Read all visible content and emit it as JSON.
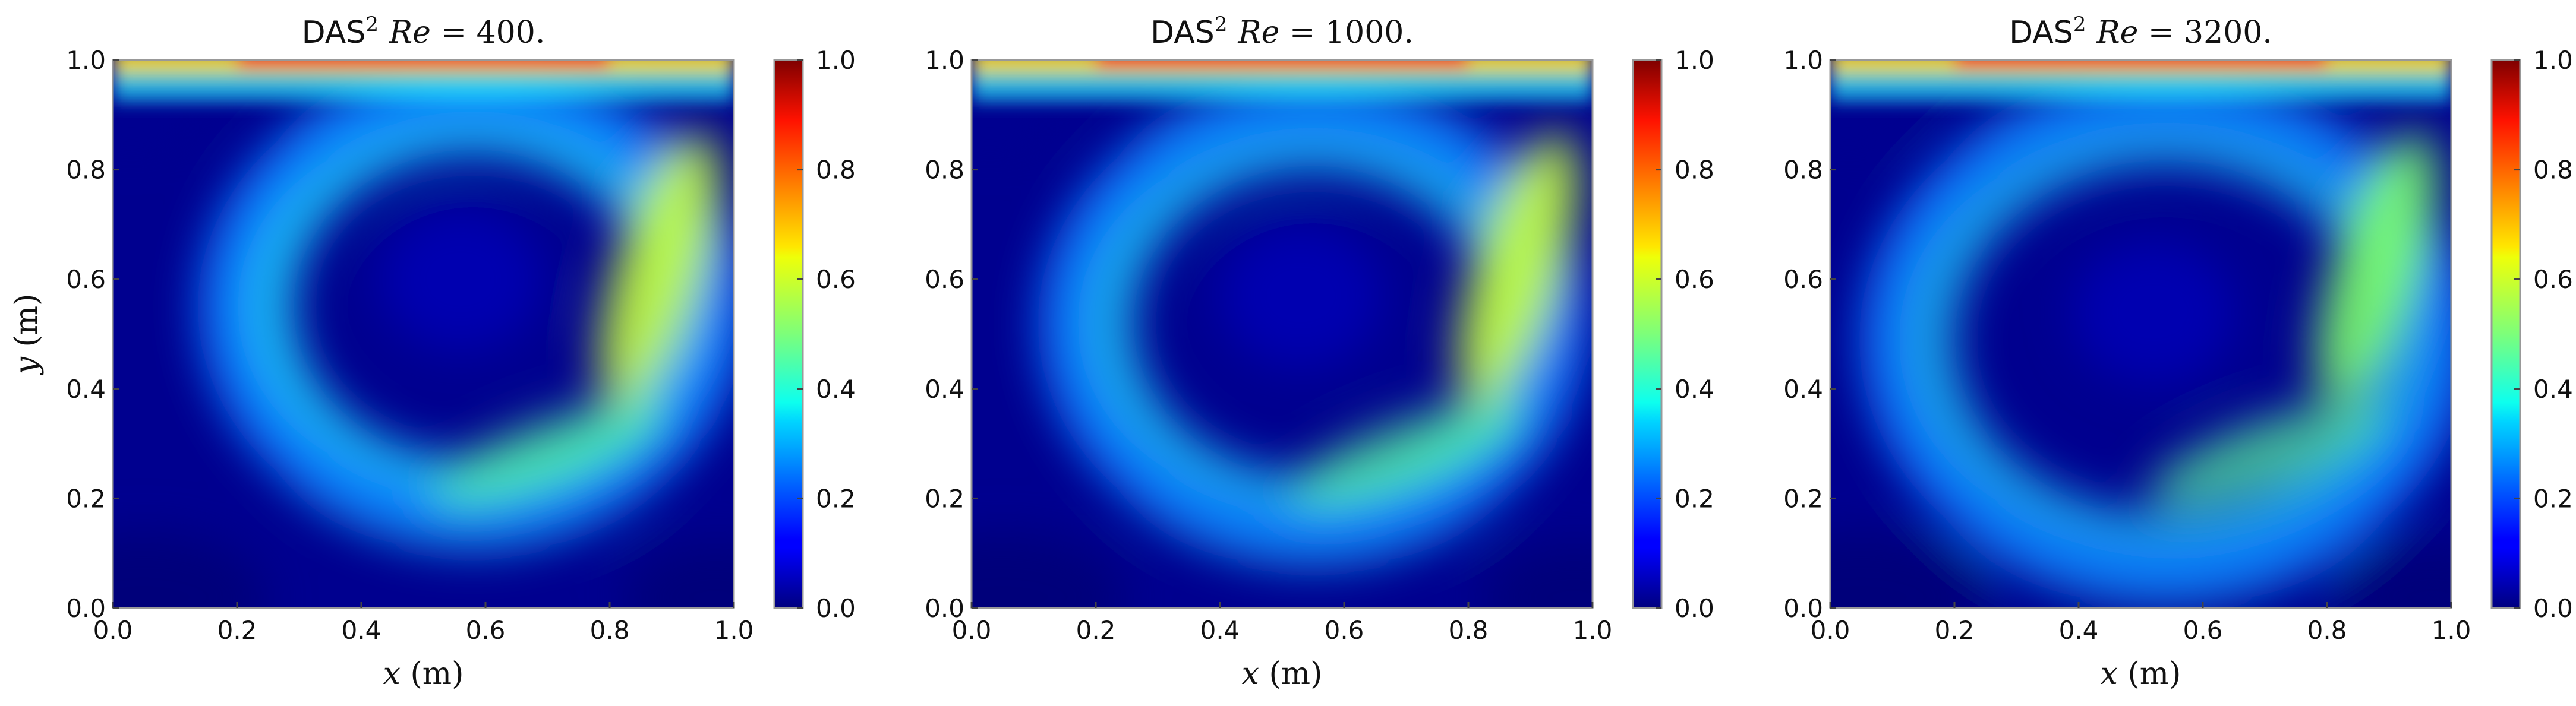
{
  "figure": {
    "panels": 3
  },
  "chart_data": [
    {
      "type": "heatmap",
      "title_prefix": "DAS",
      "title_superscript": "2",
      "title_var": "Re",
      "title_eq": " = ",
      "title_value": "400.",
      "xlabel_var": "x",
      "xlabel_unit": " (m)",
      "ylabel_var": "y",
      "ylabel_unit": " (m)",
      "show_ylabel": true,
      "xlim": [
        0.0,
        1.0
      ],
      "ylim": [
        0.0,
        1.0
      ],
      "x_ticks": [
        "0.0",
        "0.2",
        "0.4",
        "0.6",
        "0.8",
        "1.0"
      ],
      "y_ticks": [
        "0.0",
        "0.2",
        "0.4",
        "0.6",
        "0.8",
        "1.0"
      ],
      "colorbar": {
        "range": [
          0.0,
          1.0
        ],
        "ticks": [
          "0.0",
          "0.2",
          "0.4",
          "0.6",
          "0.8",
          "1.0"
        ],
        "colormap": "jet"
      },
      "vortex_center": [
        0.56,
        0.6
      ],
      "field": "velocity magnitude (lid-driven cavity)"
    },
    {
      "type": "heatmap",
      "title_prefix": "DAS",
      "title_superscript": "2",
      "title_var": "Re",
      "title_eq": " = ",
      "title_value": "1000.",
      "xlabel_var": "x",
      "xlabel_unit": " (m)",
      "ylabel_var": "",
      "ylabel_unit": "",
      "show_ylabel": false,
      "xlim": [
        0.0,
        1.0
      ],
      "ylim": [
        0.0,
        1.0
      ],
      "x_ticks": [
        "0.0",
        "0.2",
        "0.4",
        "0.6",
        "0.8",
        "1.0"
      ],
      "y_ticks": [
        "0.0",
        "0.2",
        "0.4",
        "0.6",
        "0.8",
        "1.0"
      ],
      "colorbar": {
        "range": [
          0.0,
          1.0
        ],
        "ticks": [
          "0.0",
          "0.2",
          "0.4",
          "0.6",
          "0.8",
          "1.0"
        ],
        "colormap": "jet"
      },
      "vortex_center": [
        0.53,
        0.57
      ],
      "field": "velocity magnitude (lid-driven cavity)"
    },
    {
      "type": "heatmap",
      "title_prefix": "DAS",
      "title_superscript": "2",
      "title_var": "Re",
      "title_eq": " = ",
      "title_value": "3200.",
      "xlabel_var": "x",
      "xlabel_unit": " (m)",
      "ylabel_var": "",
      "ylabel_unit": "",
      "show_ylabel": false,
      "xlim": [
        0.0,
        1.0
      ],
      "ylim": [
        0.0,
        1.0
      ],
      "x_ticks": [
        "0.0",
        "0.2",
        "0.4",
        "0.6",
        "0.8",
        "1.0"
      ],
      "y_ticks": [
        "0.0",
        "0.2",
        "0.4",
        "0.6",
        "0.8",
        "1.0"
      ],
      "colorbar": {
        "range": [
          0.0,
          1.0
        ],
        "ticks": [
          "0.0",
          "0.2",
          "0.4",
          "0.6",
          "0.8",
          "1.0"
        ],
        "colormap": "jet"
      },
      "vortex_center": [
        0.52,
        0.54
      ],
      "field": "velocity magnitude (lid-driven cavity)"
    }
  ]
}
